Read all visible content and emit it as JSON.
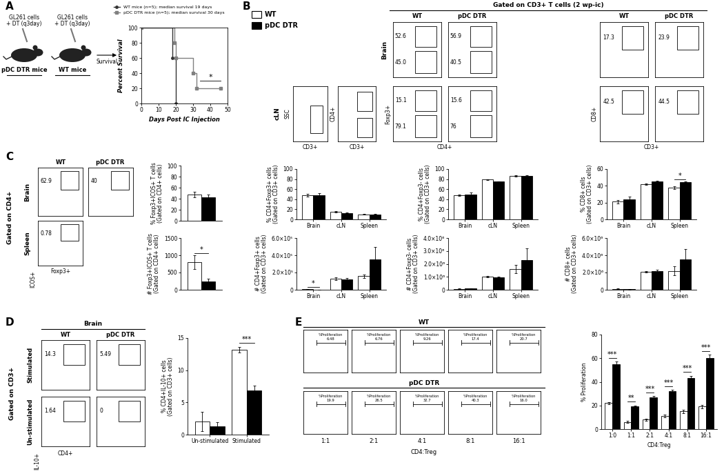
{
  "chart_data": [
    {
      "type": "line",
      "xlabel": "Days Post IC Injection",
      "ylabel": "Percent Survival",
      "xlim": [
        0,
        50
      ],
      "xticks": [
        0,
        10,
        20,
        30,
        40,
        50
      ],
      "ylim": [
        0,
        100
      ],
      "yticks": [
        0,
        20,
        40,
        60,
        80,
        100
      ],
      "legend": "upper right",
      "series": [
        {
          "name": "WT mice (n=5); median survival 19 days",
          "color": "#333333",
          "marker": "circle",
          "line_style": "steps",
          "x": [
            0,
            18,
            20
          ],
          "values": [
            100,
            60,
            0
          ]
        },
        {
          "name": "pDC DTR mice (n=5); median survival 30 days",
          "color": "#808080",
          "marker": "square",
          "line_style": "steps",
          "x": [
            0,
            19,
            20,
            30,
            32,
            46
          ],
          "values": [
            100,
            80,
            60,
            40,
            20,
            20
          ]
        }
      ],
      "annotations": [
        {
          "text": "*"
        }
      ]
    },
    {
      "type": "bar",
      "ylabel": "% CD4+Foxp3+ cells\n(Gated on CD3+ cells)",
      "categories": [
        "Brain",
        "cLN",
        "Spleen"
      ],
      "ylim": [
        0,
        100
      ],
      "yticks": [
        0,
        20,
        40,
        60,
        80,
        100
      ],
      "series": [
        {
          "color": "#ffffff",
          "values": [
            48,
            15,
            10
          ],
          "errors": [
            3,
            1.5,
            1
          ]
        },
        {
          "color": "#000000",
          "values": [
            48,
            13,
            10
          ],
          "errors": [
            4,
            1,
            1
          ]
        }
      ]
    },
    {
      "type": "bar",
      "ylabel": "% CD4+Foxp3- cells\n(Gated on CD3+ cells)",
      "categories": [
        "Brain",
        "cLN",
        "Spleen"
      ],
      "ylim": [
        0,
        100
      ],
      "yticks": [
        0,
        20,
        40,
        60,
        80,
        100
      ],
      "series": [
        {
          "color": "#ffffff",
          "values": [
            48,
            79,
            86
          ],
          "errors": [
            2,
            1,
            1
          ]
        },
        {
          "color": "#000000",
          "values": [
            50,
            75,
            86
          ],
          "errors": [
            3,
            1,
            1
          ]
        }
      ]
    },
    {
      "type": "bar",
      "ylabel": "% CD8+ cells\n(Gated on CD3+ cells)",
      "categories": [
        "Brain",
        "cLN",
        "Spleen"
      ],
      "ylim": [
        0,
        60
      ],
      "yticks": [
        0,
        20,
        40,
        60
      ],
      "series": [
        {
          "color": "#ffffff",
          "values": [
            21,
            42,
            38
          ],
          "errors": [
            2,
            1,
            1.5
          ]
        },
        {
          "color": "#000000",
          "values": [
            24,
            45,
            44
          ],
          "errors": [
            3,
            1,
            1
          ]
        }
      ],
      "annotations": [
        {
          "text": "*",
          "category": "Spleen"
        }
      ]
    },
    {
      "type": "bar",
      "ylabel": "# CD4+Foxp3+ cells\n(Gated on CD3+ cells)",
      "categories": [
        "Brain",
        "cLN",
        "Spleen"
      ],
      "ylim": [
        0,
        600000
      ],
      "yticks": [
        0,
        {
          "value": 200000,
          "label": "2.0×10⁵"
        },
        {
          "value": 400000,
          "label": "4.0×10⁵"
        },
        {
          "value": 600000,
          "label": "6.0×10⁵"
        }
      ],
      "series": [
        {
          "color": "#ffffff",
          "values": [
            8000,
            130000,
            160000
          ],
          "errors": [
            2000,
            15000,
            20000
          ]
        },
        {
          "color": "#000000",
          "values": [
            3500,
            120000,
            350000
          ],
          "errors": [
            500,
            15000,
            150000
          ]
        }
      ],
      "annotations": [
        {
          "text": "*",
          "category": "Brain"
        }
      ]
    },
    {
      "type": "bar",
      "ylabel": "# CD4+Foxp3- cells\n(Gated on CD3+ cells)",
      "categories": [
        "Brain",
        "cLN",
        "Spleen"
      ],
      "ylim": [
        0,
        4000000
      ],
      "yticks": [
        0,
        {
          "value": 1000000,
          "label": "1.0×10⁶"
        },
        {
          "value": 2000000,
          "label": "2.0×10⁶"
        },
        {
          "value": 3000000,
          "label": "3.0×10⁶"
        },
        {
          "value": 4000000,
          "label": "4.0×10⁶"
        }
      ],
      "series": [
        {
          "color": "#ffffff",
          "values": [
            80000,
            1000000,
            1600000
          ],
          "errors": [
            20000,
            50000,
            300000
          ]
        },
        {
          "color": "#000000",
          "values": [
            100000,
            950000,
            2300000
          ],
          "errors": [
            20000,
            60000,
            900000
          ]
        }
      ]
    },
    {
      "type": "bar",
      "ylabel": "# CD8+ cells\n(Gated on CD3+ cells)",
      "categories": [
        "Brain",
        "cLN",
        "Spleen"
      ],
      "ylim": [
        0,
        6000000
      ],
      "yticks": [
        0,
        {
          "value": 2000000,
          "label": "2.0×10⁶"
        },
        {
          "value": 4000000,
          "label": "4.0×10⁶"
        },
        {
          "value": 6000000,
          "label": "6.0×10⁶"
        }
      ],
      "series": [
        {
          "color": "#ffffff",
          "values": [
            100000,
            2100000,
            2200000
          ],
          "errors": [
            30000,
            100000,
            500000
          ]
        },
        {
          "color": "#000000",
          "values": [
            70000,
            2200000,
            3500000
          ],
          "errors": [
            40000,
            100000,
            1200000
          ]
        }
      ]
    },
    {
      "type": "bar",
      "ylabel": "% Foxp3+ICOS+ T cells\n(Gated on CD4+ cells)",
      "categories": [
        null
      ],
      "tick_labels": "y",
      "ylim": [
        0,
        100
      ],
      "yticks": [
        0,
        20,
        40,
        60,
        80,
        100
      ],
      "series": [
        {
          "color": "#ffffff",
          "values": [
            47
          ],
          "errors": [
            5
          ]
        },
        {
          "color": "#000000",
          "values": [
            42
          ],
          "errors": [
            5
          ]
        }
      ]
    },
    {
      "type": "bar",
      "ylabel": "# Foxp3+ICOS+ T cells\n(Gated on CD4+ cells)",
      "categories": [
        null
      ],
      "tick_labels": "y",
      "ylim": [
        0,
        1500
      ],
      "yticks": [
        0,
        500,
        1000,
        1500
      ],
      "series": [
        {
          "color": "#ffffff",
          "values": [
            800
          ],
          "errors": [
            200
          ]
        },
        {
          "color": "#000000",
          "values": [
            250
          ],
          "errors": [
            80
          ]
        }
      ],
      "annotations": [
        {
          "text": "*",
          "category": null
        }
      ]
    },
    {
      "type": "bar",
      "ylabel": "% CD4+IL-10+ cells\n(Gated on CD3+ cells)",
      "categories": [
        "Un-stimulated",
        "Stimulated"
      ],
      "ylim": [
        0,
        15
      ],
      "yticks": [
        0,
        5,
        10,
        15
      ],
      "series": [
        {
          "color": "#ffffff",
          "values": [
            2.0,
            13.2
          ],
          "errors": [
            1.5,
            0.4
          ]
        },
        {
          "color": "#000000",
          "values": [
            1.3,
            6.9
          ],
          "errors": [
            0.6,
            0.7
          ]
        }
      ],
      "annotations": [
        {
          "text": "***",
          "category": "Stimulated"
        }
      ]
    },
    {
      "type": "bar",
      "ylabel": "% Proliferation",
      "xlabel": "CD4:Treg",
      "categories": [
        "1:0",
        "1:1",
        "2:1",
        "4:1",
        "8:1",
        "16:1"
      ],
      "ylim": [
        0,
        80
      ],
      "yticks": [
        0,
        20,
        40,
        60,
        80
      ],
      "series": [
        {
          "color": "#ffffff",
          "values": [
            22,
            6,
            8,
            11,
            15,
            19
          ],
          "errors": [
            1,
            1,
            1,
            1,
            1.5,
            1.5
          ]
        },
        {
          "color": "#000000",
          "values": [
            55,
            19,
            27,
            32,
            43,
            60
          ],
          "errors": [
            2,
            1,
            1,
            1,
            2,
            3
          ]
        }
      ],
      "annotations": [
        {
          "text": "***",
          "category": "1:0"
        },
        {
          "text": "**",
          "category": "1:1"
        },
        {
          "text": "***",
          "category": "2:1"
        },
        {
          "text": "***",
          "category": "4:1"
        },
        {
          "text": "***",
          "category": "8:1"
        },
        {
          "text": "***",
          "category": "16:1"
        }
      ]
    }
  ],
  "diagram": {
    "panel_labels": [
      "A",
      "B",
      "C",
      "D",
      "E"
    ],
    "A": {
      "mice": [
        {
          "label": "pDC DTR mice",
          "treatment": "GL261 cells\n+ DT (q3day)"
        },
        {
          "label": "WT mice",
          "treatment": "GL261 cells\n+ DT (q3day)"
        }
      ],
      "arrow_label": "Survival"
    },
    "B": {
      "legend": [
        {
          "name": "WT",
          "color": "#ffffff"
        },
        {
          "name": "pDC DTR",
          "color": "#000000"
        }
      ],
      "header": "Gated on CD3+ T cells (2 wp-ic)",
      "columns": [
        "WT",
        "pDC DTR",
        "WT",
        "pDC DTR"
      ],
      "rows": [
        "Brain",
        "cLN"
      ],
      "gating": {
        "xlabel": "CD3+",
        "ylabels": [
          "SSC",
          "CD4+"
        ]
      },
      "foxp3": {
        "xlabel": "CD4+",
        "ylabel": "Foxp3+",
        "values": [
          [
            [
              "52.6",
              "45.0"
            ],
            [
              "56.9",
              "40.5"
            ]
          ],
          [
            [
              "15.1",
              "79.1"
            ],
            [
              "15.6",
              "76"
            ]
          ]
        ]
      },
      "cd8": {
        "xlabel": "CD3+",
        "ylabel": "CD8+",
        "values": [
          [
            "17.3",
            "23.9"
          ],
          [
            "42.5",
            "44.5"
          ]
        ]
      }
    },
    "C": {
      "side_label": "Gated on CD4+",
      "columns": [
        "WT",
        "pDC DTR"
      ],
      "ylabel": "ICOS+",
      "xlabel": "Foxp3+",
      "rows": [
        {
          "label": "Brain",
          "values": [
            "62.9",
            "40"
          ]
        },
        {
          "label": "Spleen",
          "values": [
            "0.78"
          ]
        }
      ]
    },
    "D": {
      "header": "Brain",
      "columns": [
        "WT",
        "pDC DTR"
      ],
      "side_label": "Gated on CD3+",
      "ylabel": "IL-10+",
      "xlabel": "CD4+",
      "rows": [
        {
          "label": "Stimulated",
          "values": [
            "14.3",
            "5.49"
          ]
        },
        {
          "label": "Un-stimulated",
          "values": [
            "1.64",
            "0"
          ]
        }
      ]
    },
    "E": {
      "gate_label": "%Proliferation",
      "ratios": [
        "1:1",
        "2:1",
        "4:1",
        "8:1",
        "16:1"
      ],
      "xlabel": "CD4:Treg",
      "groups": [
        {
          "label": "WT",
          "values": [
            "6.48",
            "6.76",
            "9.26",
            "17.4",
            "20.7"
          ]
        },
        {
          "label": "pDC DTR",
          "values": [
            "19.9",
            "26.5",
            "32.7",
            "40.3",
            "16.0"
          ]
        }
      ]
    }
  }
}
